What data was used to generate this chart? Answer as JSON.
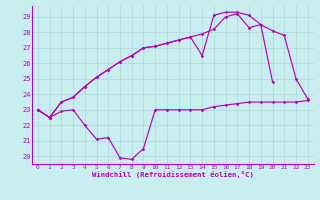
{
  "xlabel": "Windchill (Refroidissement éolien,°C)",
  "bg_color": "#c8eef0",
  "grid_color": "#b0dddd",
  "line_color": "#bb00bb",
  "x": [
    0,
    1,
    2,
    3,
    4,
    5,
    6,
    7,
    8,
    9,
    10,
    11,
    12,
    13,
    14,
    15,
    16,
    17,
    18,
    19,
    20,
    21,
    22,
    23
  ],
  "line1_y": [
    23.0,
    22.5,
    22.9,
    23.0,
    22.0,
    21.1,
    21.2,
    19.9,
    19.8,
    20.5,
    23.0,
    23.0,
    23.0,
    23.0,
    23.0,
    23.2,
    23.3,
    23.4,
    23.5,
    23.5,
    23.5,
    23.5,
    23.5,
    23.6
  ],
  "line2_y": [
    23.0,
    22.5,
    23.5,
    23.8,
    24.5,
    25.1,
    25.6,
    26.1,
    26.5,
    27.0,
    27.1,
    27.3,
    27.5,
    27.7,
    27.9,
    28.2,
    29.0,
    29.2,
    28.3,
    28.5,
    28.1,
    27.8,
    25.0,
    23.7
  ],
  "line3_y": [
    23.0,
    22.5,
    23.5,
    23.8,
    24.5,
    25.1,
    25.6,
    26.1,
    26.5,
    27.0,
    27.1,
    27.3,
    27.5,
    27.7,
    26.5,
    29.1,
    29.3,
    29.3,
    29.1,
    28.5,
    24.8,
    null,
    null,
    null
  ],
  "yticks": [
    20,
    21,
    22,
    23,
    24,
    25,
    26,
    27,
    28,
    29
  ],
  "ylim": [
    19.5,
    29.7
  ],
  "xlim": [
    -0.5,
    23.5
  ]
}
